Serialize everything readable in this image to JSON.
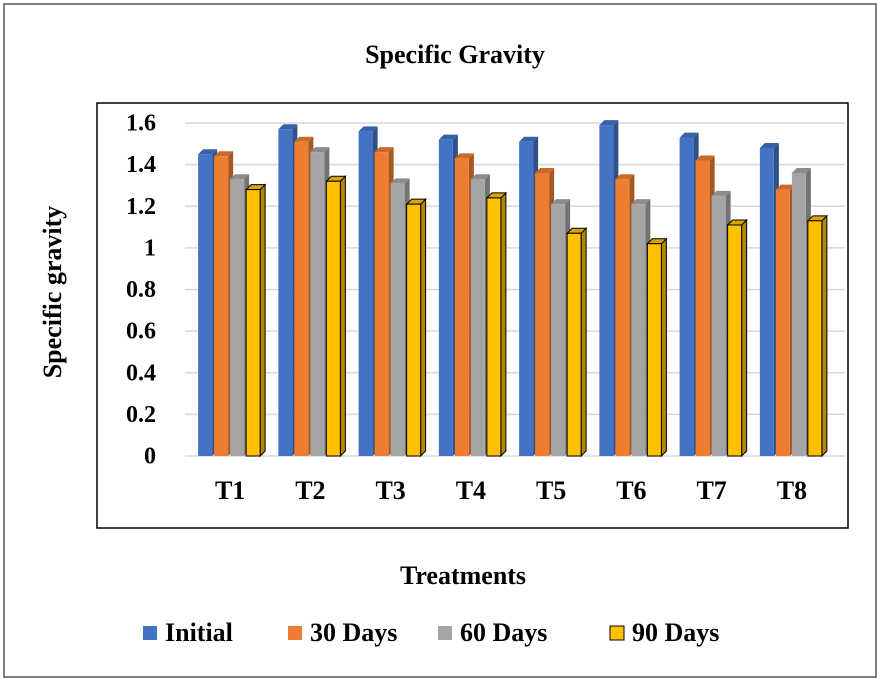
{
  "chart_data": {
    "type": "bar3d",
    "title": "Specific Gravity",
    "x_label": "Treatments",
    "y_label": "Specific gravity",
    "categories": [
      "T1",
      "T2",
      "T3",
      "T4",
      "T5",
      "T6",
      "T7",
      "T8"
    ],
    "series": [
      {
        "name": "Initial",
        "color": "#4472c4",
        "values": [
          1.45,
          1.57,
          1.56,
          1.52,
          1.51,
          1.59,
          1.53,
          1.48
        ]
      },
      {
        "name": "30 Days",
        "color": "#ed7d31",
        "values": [
          1.44,
          1.51,
          1.46,
          1.43,
          1.36,
          1.33,
          1.42,
          1.28
        ]
      },
      {
        "name": "60 Days",
        "color": "#a5a5a5",
        "values": [
          1.33,
          1.46,
          1.31,
          1.33,
          1.21,
          1.21,
          1.25,
          1.36
        ]
      },
      {
        "name": "90 Days",
        "color": "#ffc000",
        "values": [
          1.28,
          1.32,
          1.21,
          1.24,
          1.07,
          1.02,
          1.11,
          1.13
        ]
      }
    ],
    "ylim": [
      0,
      1.6
    ],
    "yticks": [
      0,
      0.2,
      0.4,
      0.6,
      0.8,
      1,
      1.2,
      1.4,
      1.6
    ],
    "grid": true,
    "legend": "bottom"
  }
}
